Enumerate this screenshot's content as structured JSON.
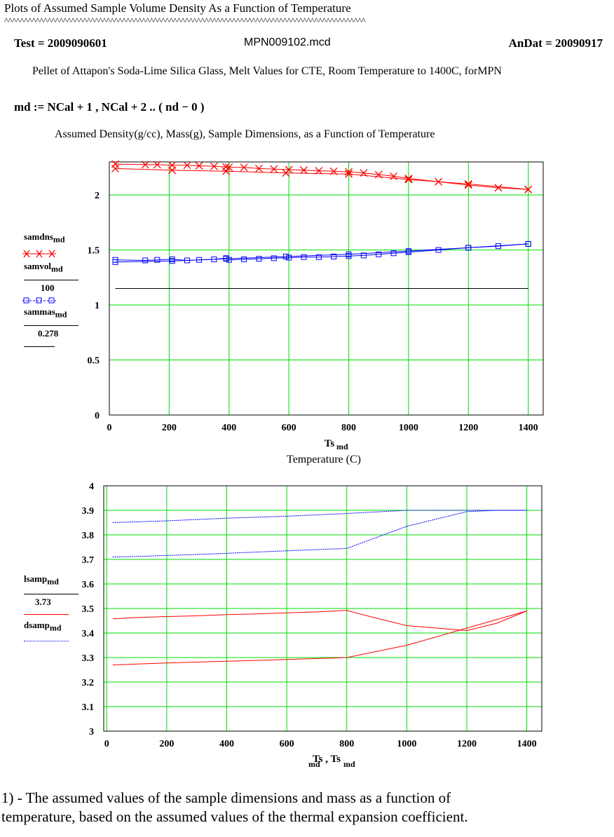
{
  "header": {
    "title": "Plots of Assumed Sample Volume  Density As a Function of Temperature",
    "carets": "^^^^^^^^^^^^^^^^^^^^^^^^^^^^^^^^^^^^^^^^^^^^^^^^^^^^^^^^^^^^^^^^^^^^^^^^^^^^^^^^^^^^^^^^^^^^",
    "test": "Test = 2009090601",
    "file": "MPN009102.mcd",
    "andat": "AnDat = 20090917",
    "description": "Pellet of Attapon's Soda-Lime Silica Glass, Melt Values for CTE,  Room Temperature to 1400C,  forMPN",
    "md_def": "md := NCal + 1 , NCal + 2 .. ( nd − 0 )"
  },
  "chart1_caption": "Assumed  Density(g/cc), Mass(g), Sample Dimensions, as a Function of Temperature",
  "chart2_legend": {
    "l1_base": "lsamp",
    "l1_sub": "md",
    "l1_div": "3.73",
    "l2_base": "dsamp",
    "l2_sub": "md"
  },
  "chart1_legend": {
    "dns_base": "samdns",
    "dns_sub": "md",
    "vol_base": "samvol",
    "vol_sub": "md",
    "vol_div": "100",
    "mas_base": "sammas",
    "mas_sub": "md",
    "mas_div": "0.278"
  },
  "footnote": {
    "line1": "1) -  The assumed values of the sample dimensions and mass as a function of",
    "line2": "temperature, based on the assumed values of the thermal expansion coefficient."
  },
  "chart_data": [
    {
      "type": "line",
      "xlabel": "Ts_md",
      "xlabel_caption": "Temperature (C)",
      "xlim": [
        0,
        1450
      ],
      "ylim": [
        0,
        2.3
      ],
      "xticks": [
        0,
        200,
        400,
        600,
        800,
        1000,
        1200,
        1400
      ],
      "yticks": [
        0,
        0.5,
        1,
        1.5,
        2
      ],
      "xtick_labels": [
        "0",
        "200",
        "400",
        "600",
        "800",
        "1000",
        "1200",
        "1400"
      ],
      "ytick_labels": [
        "0",
        "0.5",
        "1",
        "1.5",
        "2"
      ],
      "grid": true,
      "series": [
        {
          "name": "samdns_md",
          "color": "#ff0000",
          "marker": "x",
          "x": [
            20,
            120,
            160,
            210,
            260,
            300,
            350,
            390,
            400,
            450,
            500,
            550,
            600,
            650,
            700,
            750,
            800,
            850,
            900,
            950,
            1000,
            1100,
            1200,
            1300,
            1400
          ],
          "y": [
            2.28,
            2.275,
            2.275,
            2.27,
            2.27,
            2.265,
            2.26,
            2.255,
            2.25,
            2.25,
            2.24,
            2.235,
            2.23,
            2.225,
            2.22,
            2.215,
            2.21,
            2.2,
            2.185,
            2.17,
            2.15,
            2.12,
            2.09,
            2.065,
            2.05
          ]
        },
        {
          "name": "samdns_md",
          "color": "#ff0000",
          "marker": "x",
          "x": [
            20,
            210,
            390,
            590,
            800,
            1000,
            1200,
            1400
          ],
          "y": [
            2.24,
            2.225,
            2.215,
            2.2,
            2.19,
            2.14,
            2.1,
            2.05
          ]
        },
        {
          "name": "samvol_md/100",
          "color": "#000000",
          "marker": "none",
          "x": [
            20,
            1400
          ],
          "y": [
            1.15,
            1.15
          ]
        },
        {
          "name": "sammas_md/0.278",
          "color": "#0000ff",
          "marker": "square",
          "x": [
            20,
            120,
            160,
            210,
            260,
            300,
            350,
            390,
            400,
            450,
            500,
            550,
            600,
            650,
            700,
            750,
            800,
            850,
            900,
            950,
            1000,
            1100,
            1200,
            1300,
            1400
          ],
          "y": [
            1.41,
            1.405,
            1.41,
            1.415,
            1.405,
            1.41,
            1.415,
            1.425,
            1.41,
            1.415,
            1.42,
            1.425,
            1.43,
            1.435,
            1.435,
            1.44,
            1.445,
            1.45,
            1.46,
            1.47,
            1.48,
            1.5,
            1.52,
            1.535,
            1.555
          ]
        },
        {
          "name": "sammas_md/0.278",
          "color": "#0000ff",
          "marker": "square",
          "x": [
            20,
            210,
            390,
            590,
            800,
            1000,
            1200,
            1400
          ],
          "y": [
            1.39,
            1.4,
            1.42,
            1.44,
            1.46,
            1.49,
            1.52,
            1.555
          ]
        }
      ]
    },
    {
      "type": "line",
      "xlabel": "Ts_md, Ts_md",
      "xlim": [
        -10,
        1450
      ],
      "ylim": [
        3,
        4
      ],
      "xticks": [
        0,
        200,
        400,
        600,
        800,
        1000,
        1200,
        1400
      ],
      "yticks": [
        3,
        3.1,
        3.2,
        3.3,
        3.4,
        3.5,
        3.6,
        3.7,
        3.8,
        3.9,
        4
      ],
      "xtick_labels": [
        "0",
        "200",
        "400",
        "600",
        "800",
        "1000",
        "1200",
        "1400"
      ],
      "ytick_labels": [
        "3",
        "3.1",
        "3.2",
        "3.3",
        "3.4",
        "3.5",
        "3.6",
        "3.7",
        "3.8",
        "3.9",
        "4"
      ],
      "grid": true,
      "series": [
        {
          "name": "lsamp_md/3.73",
          "color": "#ff0000",
          "marker": "none",
          "x": [
            20,
            100,
            200,
            300,
            400,
            500,
            600,
            700,
            800,
            900,
            1000,
            1100,
            1200,
            1300,
            1400
          ],
          "y": [
            3.458,
            3.463,
            3.467,
            3.47,
            3.475,
            3.478,
            3.482,
            3.486,
            3.492,
            3.46,
            3.43,
            3.42,
            3.41,
            3.44,
            3.49
          ]
        },
        {
          "name": "lsamp_md/3.73",
          "color": "#ff0000",
          "marker": "none",
          "x": [
            20,
            200,
            400,
            600,
            800,
            1000,
            1200,
            1400
          ],
          "y": [
            3.27,
            3.278,
            3.285,
            3.292,
            3.3,
            3.35,
            3.42,
            3.49
          ]
        },
        {
          "name": "dsamp_md",
          "color": "#0000ff",
          "marker": "none",
          "x": [
            20,
            200,
            400,
            600,
            800,
            1000,
            1200,
            1400
          ],
          "y": [
            3.85,
            3.857,
            3.868,
            3.876,
            3.887,
            3.9,
            3.9,
            3.9
          ]
        },
        {
          "name": "dsamp_md",
          "color": "#0000ff",
          "marker": "none",
          "x": [
            20,
            100,
            200,
            300,
            400,
            500,
            600,
            700,
            800,
            900,
            1000,
            1100,
            1200,
            1300,
            1400
          ],
          "y": [
            3.71,
            3.712,
            3.716,
            3.72,
            3.725,
            3.73,
            3.735,
            3.74,
            3.745,
            3.79,
            3.835,
            3.865,
            3.895,
            3.9,
            3.9
          ]
        }
      ]
    }
  ]
}
